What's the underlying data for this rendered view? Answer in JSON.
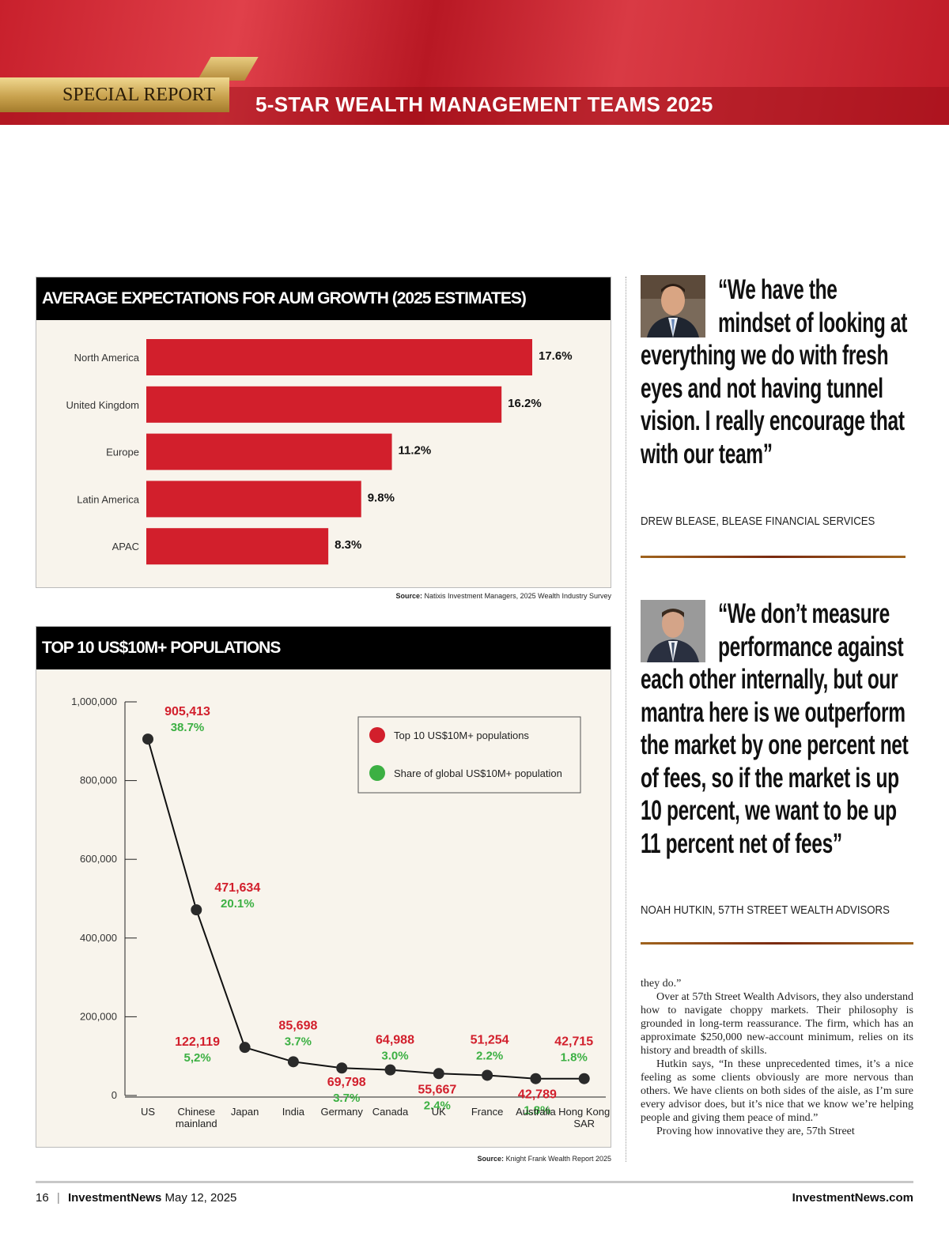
{
  "header": {
    "label": "SPECIAL REPORT",
    "title": "5-STAR WEALTH MANAGEMENT TEAMS 2025"
  },
  "chart_data": [
    {
      "type": "bar",
      "title": "AVERAGE EXPECTATIONS FOR AUM GROWTH (2025 ESTIMATES)",
      "categories": [
        "North America",
        "United Kingdom",
        "Europe",
        "Latin America",
        "APAC"
      ],
      "values": [
        17.6,
        16.2,
        11.2,
        9.8,
        8.3
      ],
      "value_labels": [
        "17.6%",
        "16.2%",
        "11.2%",
        "9.8%",
        "8.3%"
      ],
      "color": "#d21f2c",
      "source_label": "Source:",
      "source": "Natixis Investment Managers, 2025 Wealth Industry Survey"
    },
    {
      "type": "line",
      "title": "TOP 10 US$10M+ POPULATIONS",
      "categories": [
        "US",
        "Chinese mainland",
        "Japan",
        "India",
        "Germany",
        "Canada",
        "UK",
        "France",
        "Australia",
        "Hong Kong SAR"
      ],
      "series": [
        {
          "name": "Top 10 US$10M+ populations",
          "color": "#d21f2c",
          "values": [
            905413,
            471634,
            122119,
            85698,
            69798,
            64988,
            55667,
            51254,
            42789,
            42715
          ],
          "value_labels": [
            "905,413",
            "471,634",
            "122,119",
            "85,698",
            "69,798",
            "64,988",
            "55,667",
            "51,254",
            "42,789",
            "42,715"
          ]
        },
        {
          "name": "Share of global US$10M+ population",
          "color": "#3cb043",
          "values": [
            38.7,
            20.1,
            5.2,
            3.7,
            3.7,
            3.0,
            2.4,
            2.2,
            1.8,
            1.8
          ],
          "value_labels": [
            "38.7%",
            "20.1%",
            "5,2%",
            "3.7%",
            "3.7%",
            "3.0%",
            "2.4%",
            "2.2%",
            "1.8%",
            "1.8%"
          ]
        }
      ],
      "line_color": "#111111",
      "ylim": [
        0,
        1000000
      ],
      "yticks": [
        0,
        {
          "value": 200000,
          "label": "200,000"
        },
        {
          "value": 400000,
          "label": "400,000"
        },
        {
          "value": 600000,
          "label": "600,000"
        },
        {
          "value": 800000,
          "label": "800,000"
        },
        {
          "value": 1000000,
          "label": "1,000,000"
        }
      ],
      "legend": "upper right",
      "source_label": "Source:",
      "source": "Knight Frank Wealth Report 2025"
    }
  ],
  "quotes": [
    {
      "text": "“We have the mindset of looking at everything we do with fresh eyes and not having tunnel vision. I really encourage that with our team”",
      "attribution": "DREW BLEASE, BLEASE FINANCIAL SERVICES"
    },
    {
      "text": "“We don’t measure performance against each other internally, but our mantra here is we outperform the market by one percent net of fees, so if the market is up 10 percent, we want to be up 11 percent net of fees”",
      "attribution": "NOAH HUTKIN, 57TH STREET WEALTH ADVISORS"
    }
  ],
  "body": [
    "they do.”",
    "Over at 57th Street Wealth Advisors, they also understand how to navigate choppy markets. Their philosophy is grounded in long-term reassurance. The firm, which has an approximate $250,000 new-account minimum, relies on its history and breadth of skills.",
    "Hutkin says, “In these unprecedented times, it’s a nice feeling as some clients obviously are more nervous than others. We have clients on both sides of the aisle, as I’m sure every advisor does, but it’s nice that we know we’re helping people and giving them peace of mind.”",
    "Proving how innovative they are, 57th Street"
  ],
  "footer": {
    "page": "16",
    "publication": "InvestmentNews",
    "date": "May 12, 2025",
    "website": "InvestmentNews.com"
  }
}
